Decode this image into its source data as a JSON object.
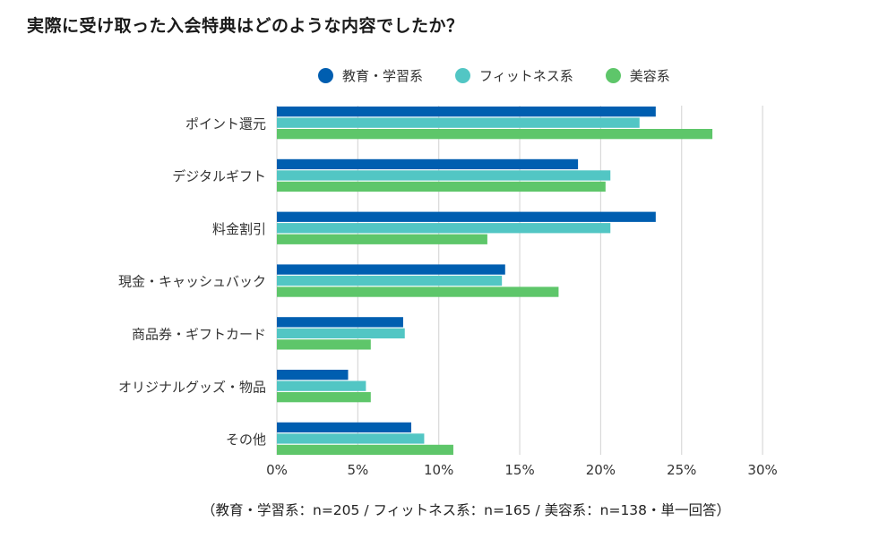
{
  "chart_data": {
    "type": "bar",
    "orientation": "horizontal",
    "title": "実際に受け取った入会特典はどのような内容でしたか？",
    "xlabel": "",
    "ylabel": "",
    "xlim": [
      0,
      30
    ],
    "x_ticks": [
      "0%",
      "5%",
      "10%",
      "15%",
      "20%",
      "25%",
      "30%"
    ],
    "x_tick_values": [
      0,
      5,
      10,
      15,
      20,
      25,
      30
    ],
    "grid": true,
    "legend_position": "top",
    "categories": [
      "ポイント還元",
      "デジタルギフト",
      "料金割引",
      "現金・キャッシュバック",
      "商品券・ギフトカード",
      "オリジナルグッズ・物品",
      "その他"
    ],
    "series": [
      {
        "name": "教育・学習系",
        "color": "#005eb0",
        "values": [
          23.4,
          18.6,
          23.4,
          14.1,
          7.8,
          4.4,
          8.3
        ]
      },
      {
        "name": "フィットネス系",
        "color": "#52c6c4",
        "values": [
          22.4,
          20.6,
          20.6,
          13.9,
          7.9,
          5.5,
          9.1
        ]
      },
      {
        "name": "美容系",
        "color": "#5ec66a",
        "values": [
          26.9,
          20.3,
          13.0,
          17.4,
          5.8,
          5.8,
          10.9
        ]
      }
    ],
    "footnote": "（教育・学習系：n=205 / フィットネス系：n=165 / 美容系：n=138・単一回答）"
  }
}
